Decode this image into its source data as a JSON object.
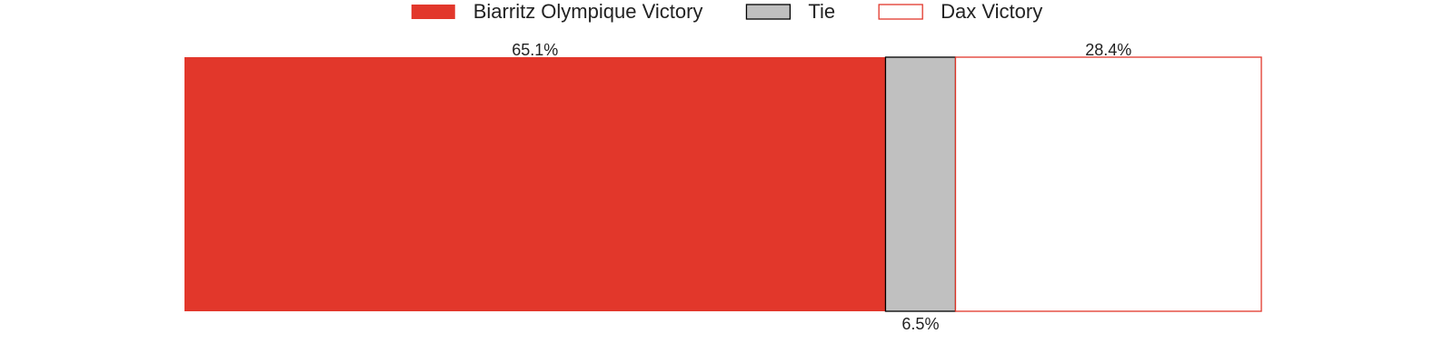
{
  "chart_data": {
    "type": "bar",
    "orientation": "horizontal-stacked-100",
    "title": "",
    "xlabel": "",
    "ylabel": "",
    "xlim": [
      0,
      100
    ],
    "grid": false,
    "legend_position": "top-center",
    "series": [
      {
        "name": "Biarritz Olympique Victory",
        "value": 65.1,
        "label": "65.1%",
        "label_position": "above",
        "fill": "#e2372b",
        "stroke": "none"
      },
      {
        "name": "Tie",
        "value": 6.5,
        "label": "6.5%",
        "label_position": "below",
        "fill": "#c0c0c0",
        "stroke": "#000000"
      },
      {
        "name": "Dax Victory",
        "value": 28.4,
        "label": "28.4%",
        "label_position": "above",
        "fill": "#ffffff",
        "stroke": "#e2372b"
      }
    ]
  }
}
